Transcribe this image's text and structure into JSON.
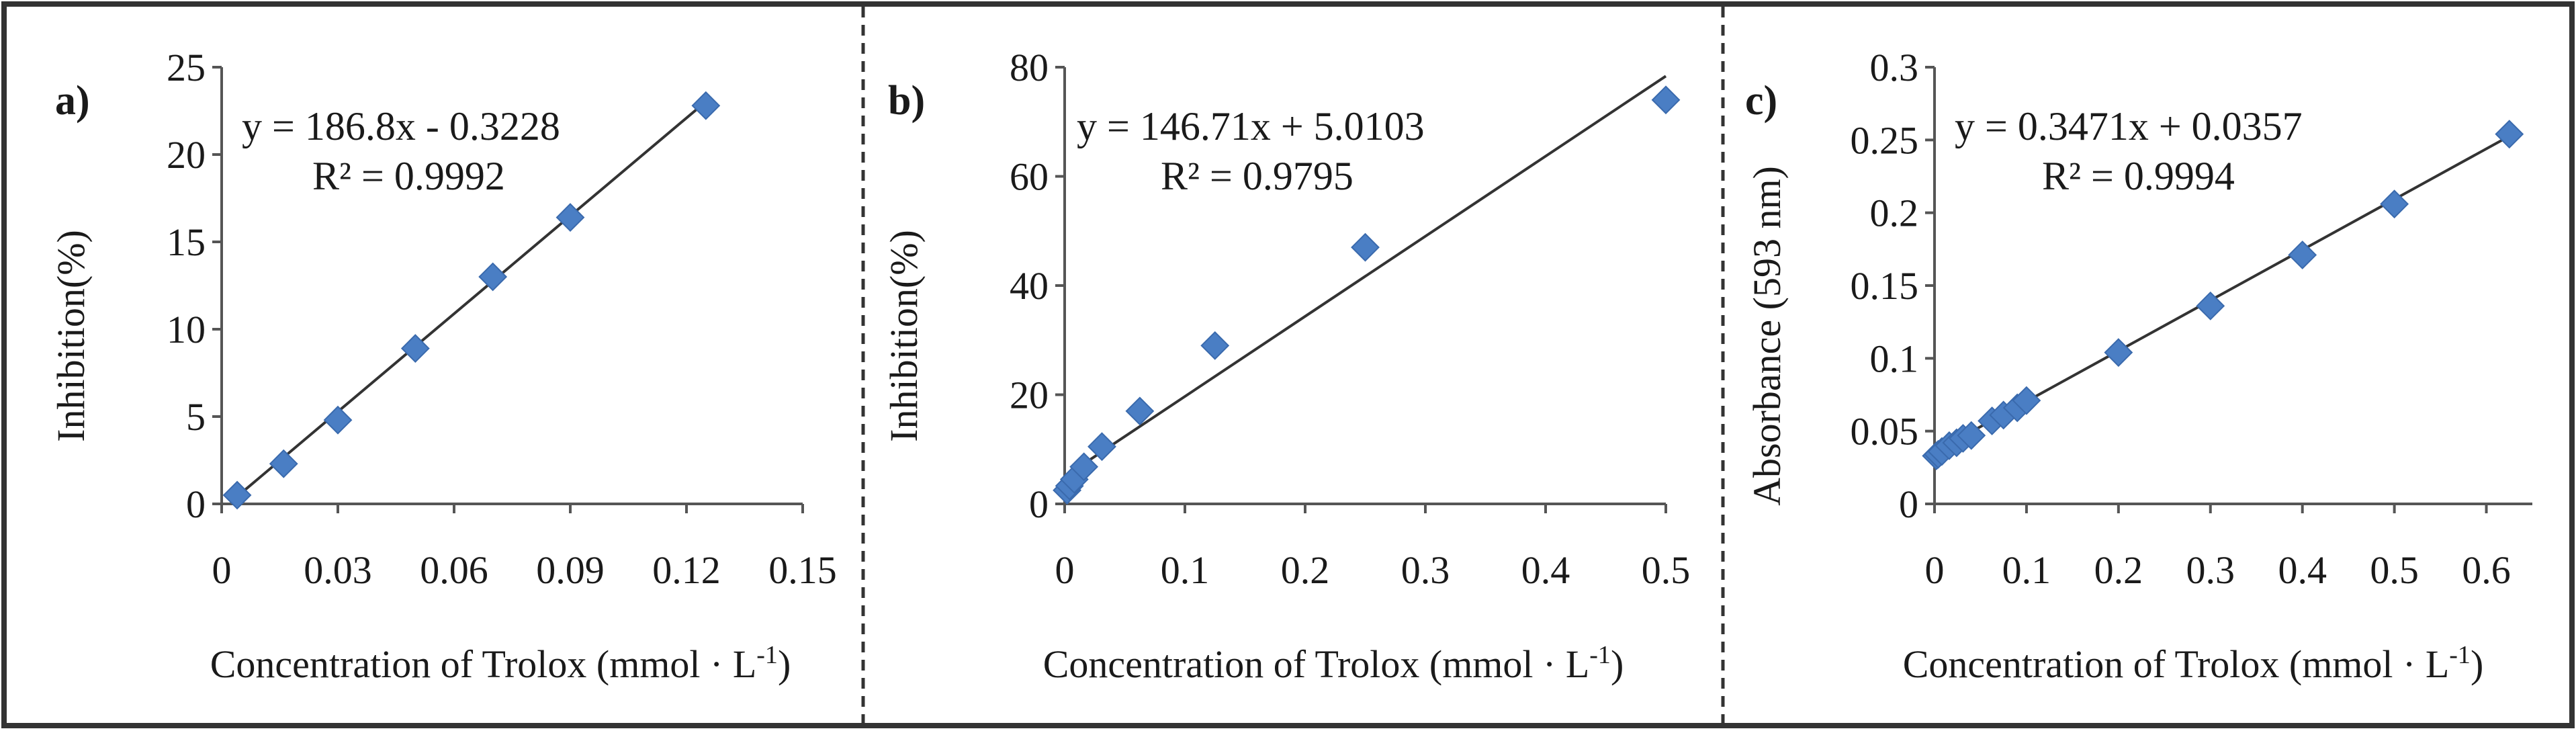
{
  "chart_data": [
    {
      "type": "scatter",
      "panel_label": "a)",
      "xlabel": "Concentration of Trolox (mmol · L",
      "xlabel_sup": "-1",
      "xlabel_close": ")",
      "ylabel": "Inhibition(%)",
      "xlim": [
        0,
        0.15
      ],
      "ylim": [
        0,
        25
      ],
      "xticks": [
        0,
        0.03,
        0.06,
        0.09,
        0.12,
        0.15
      ],
      "xtick_labels": [
        "0",
        "0.03",
        "0.06",
        "0.09",
        "0.12",
        "0.15"
      ],
      "yticks": [
        0,
        5,
        10,
        15,
        20,
        25
      ],
      "ytick_labels": [
        "0",
        "5",
        "10",
        "15",
        "20",
        "25"
      ],
      "equation": "y = 186.8x - 0.3228",
      "r2": "R² = 0.9992",
      "trendline": {
        "slope": 186.8,
        "intercept": -0.3228,
        "x_range": [
          0.004,
          0.125
        ]
      },
      "points": [
        {
          "x": 0.004,
          "y": 0.5
        },
        {
          "x": 0.016,
          "y": 2.3
        },
        {
          "x": 0.03,
          "y": 4.8
        },
        {
          "x": 0.05,
          "y": 8.9
        },
        {
          "x": 0.07,
          "y": 13.0
        },
        {
          "x": 0.09,
          "y": 16.4
        },
        {
          "x": 0.125,
          "y": 22.8
        }
      ],
      "grid": false
    },
    {
      "type": "scatter",
      "panel_label": "b)",
      "xlabel": "Concentration of Trolox (mmol · L",
      "xlabel_sup": "-1",
      "xlabel_close": ")",
      "ylabel": "Inhibition(%)",
      "xlim": [
        0,
        0.5
      ],
      "ylim": [
        0,
        80
      ],
      "xticks": [
        0,
        0.1,
        0.2,
        0.3,
        0.4,
        0.5
      ],
      "xtick_labels": [
        "0",
        "0.1",
        "0.2",
        "0.3",
        "0.4",
        "0.5"
      ],
      "yticks": [
        0,
        20,
        40,
        60,
        80
      ],
      "ytick_labels": [
        "0",
        "20",
        "40",
        "60",
        "80"
      ],
      "equation": "y = 146.71x + 5.0103",
      "r2": "R² = 0.9795",
      "trendline": {
        "slope": 146.71,
        "intercept": 5.0103,
        "x_range": [
          0,
          0.5
        ]
      },
      "points": [
        {
          "x": 0.002,
          "y": 2.5
        },
        {
          "x": 0.004,
          "y": 3.3
        },
        {
          "x": 0.008,
          "y": 4.5
        },
        {
          "x": 0.016,
          "y": 6.8
        },
        {
          "x": 0.031,
          "y": 10.5
        },
        {
          "x": 0.0625,
          "y": 17.0
        },
        {
          "x": 0.125,
          "y": 29.0
        },
        {
          "x": 0.25,
          "y": 47.0
        },
        {
          "x": 0.5,
          "y": 74.0
        }
      ],
      "grid": false
    },
    {
      "type": "scatter",
      "panel_label": "c)",
      "xlabel": "Concentration of Trolox (mmol · L",
      "xlabel_sup": "-1",
      "xlabel_close": ")",
      "ylabel": "Absorbance (593 nm)",
      "xlim": [
        0,
        0.65
      ],
      "ylim": [
        0,
        0.3
      ],
      "xticks": [
        0,
        0.1,
        0.2,
        0.3,
        0.4,
        0.5,
        0.6
      ],
      "xtick_labels": [
        "0",
        "0.1",
        "0.2",
        "0.3",
        "0.4",
        "0.5",
        "0.6"
      ],
      "yticks": [
        0,
        0.05,
        0.1,
        0.15,
        0.2,
        0.25,
        0.3
      ],
      "ytick_labels": [
        "0",
        "0.05",
        "0.1",
        "0.15",
        "0.2",
        "0.25",
        "0.3"
      ],
      "equation": "y = 0.3471x + 0.0357",
      "r2": "R² = 0.9994",
      "trendline": {
        "slope": 0.3471,
        "intercept": 0.0357,
        "x_range": [
          0,
          0.625
        ]
      },
      "points": [
        {
          "x": 0.002,
          "y": 0.033
        },
        {
          "x": 0.004,
          "y": 0.034
        },
        {
          "x": 0.008,
          "y": 0.036
        },
        {
          "x": 0.016,
          "y": 0.04
        },
        {
          "x": 0.024,
          "y": 0.042
        },
        {
          "x": 0.031,
          "y": 0.045
        },
        {
          "x": 0.04,
          "y": 0.047
        },
        {
          "x": 0.0625,
          "y": 0.057
        },
        {
          "x": 0.075,
          "y": 0.061
        },
        {
          "x": 0.09,
          "y": 0.066
        },
        {
          "x": 0.1,
          "y": 0.071
        },
        {
          "x": 0.2,
          "y": 0.104
        },
        {
          "x": 0.3,
          "y": 0.136
        },
        {
          "x": 0.4,
          "y": 0.171
        },
        {
          "x": 0.5,
          "y": 0.206
        },
        {
          "x": 0.625,
          "y": 0.254
        }
      ],
      "grid": false
    }
  ],
  "colors": {
    "marker": "#4a7ec4",
    "trendline": "#333333",
    "axis": "#555555",
    "frame": "#333333",
    "divider": "#333333"
  }
}
